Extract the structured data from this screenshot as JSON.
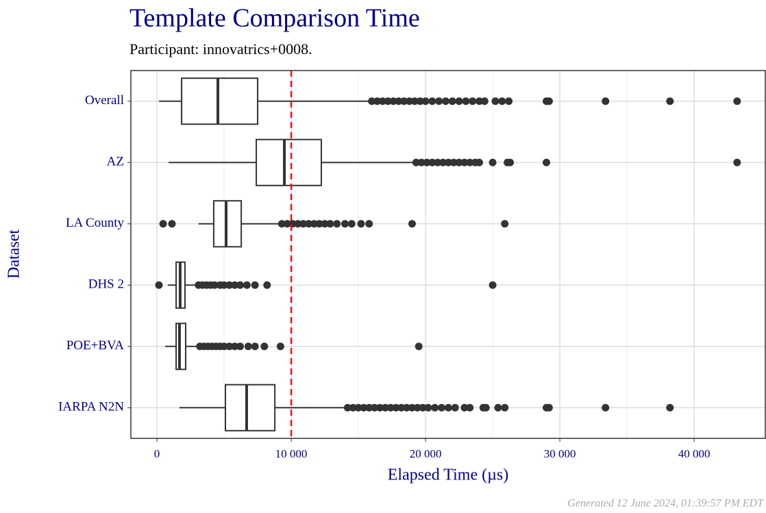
{
  "chart_data": {
    "type": "boxplot",
    "title": "Template Comparison Time",
    "subtitle": "Participant: innovatrics+0008.",
    "x_label": "Elapsed Time (µs)",
    "y_label": "Dataset",
    "footer": "Generated 12 June 2024, 01:39:57 PM EDT",
    "orientation": "horizontal",
    "xlim": [
      -1940,
      45300
    ],
    "xticks": [
      0,
      {
        "value": 10000,
        "label": "10 000"
      },
      {
        "value": 20000,
        "label": "20 000"
      },
      {
        "value": 30000,
        "label": "30 000"
      },
      {
        "value": 40000,
        "label": "40 000"
      }
    ],
    "x_minor_ticks": [
      5000,
      15000,
      25000,
      35000
    ],
    "grid": true,
    "reference_line": {
      "value": 10000,
      "color": "#ee1111"
    },
    "box_color": "#333333",
    "point_color": "#333333",
    "categories": [
      "Overall",
      "AZ",
      "LA County",
      "DHS 2",
      "POE+BVA",
      "IARPA N2N"
    ],
    "boxes": [
      {
        "whisker_low": 150,
        "q1": 1840,
        "median": 4540,
        "q3": 7500,
        "whisker_high": 15870,
        "outliers": [
          16000,
          16400,
          16800,
          17200,
          17600,
          18000,
          18400,
          18800,
          19200,
          19600,
          20000,
          20500,
          21000,
          21500,
          22000,
          22500,
          23000,
          23500,
          24000,
          24400,
          25200,
          25700,
          26200,
          29000,
          29200,
          33400,
          38200,
          43200
        ]
      },
      {
        "whisker_low": 870,
        "q1": 7400,
        "median": 9490,
        "q3": 12240,
        "whisker_high": 19180,
        "outliers": [
          19300,
          19700,
          20100,
          20500,
          20900,
          21300,
          21700,
          22100,
          22500,
          22900,
          23300,
          23700,
          24000,
          25000,
          26100,
          26300,
          29000,
          43200
        ]
      },
      {
        "whisker_low": 3100,
        "q1": 4230,
        "median": 5150,
        "q3": 6280,
        "whisker_high": 9230,
        "outliers": [
          460,
          1120,
          9300,
          9700,
          10100,
          10500,
          10900,
          11300,
          11700,
          12100,
          12500,
          12900,
          13400,
          14000,
          14500,
          15200,
          15800,
          19000,
          25900
        ]
      },
      {
        "whisker_low": 820,
        "q1": 1430,
        "median": 1730,
        "q3": 2090,
        "whisker_high": 2960,
        "outliers": [
          150,
          3100,
          3400,
          3700,
          4000,
          4300,
          4700,
          5000,
          5400,
          5800,
          6200,
          6700,
          7300,
          8200,
          25000
        ]
      },
      {
        "whisker_low": 610,
        "q1": 1430,
        "median": 1680,
        "q3": 2140,
        "whisker_high": 3060,
        "outliers": [
          3200,
          3500,
          3800,
          4100,
          4400,
          4700,
          5000,
          5400,
          5800,
          6200,
          6800,
          7300,
          8000,
          9200,
          19500
        ]
      },
      {
        "whisker_low": 1680,
        "q1": 5100,
        "median": 6680,
        "q3": 8780,
        "whisker_high": 14080,
        "outliers": [
          14200,
          14600,
          15000,
          15400,
          15800,
          16200,
          16600,
          17000,
          17400,
          17800,
          18200,
          18600,
          19000,
          19400,
          19800,
          20200,
          20700,
          21200,
          21700,
          22200,
          22900,
          23300,
          24300,
          24500,
          25400,
          25900,
          29000,
          29200,
          33400,
          38200
        ]
      }
    ]
  }
}
